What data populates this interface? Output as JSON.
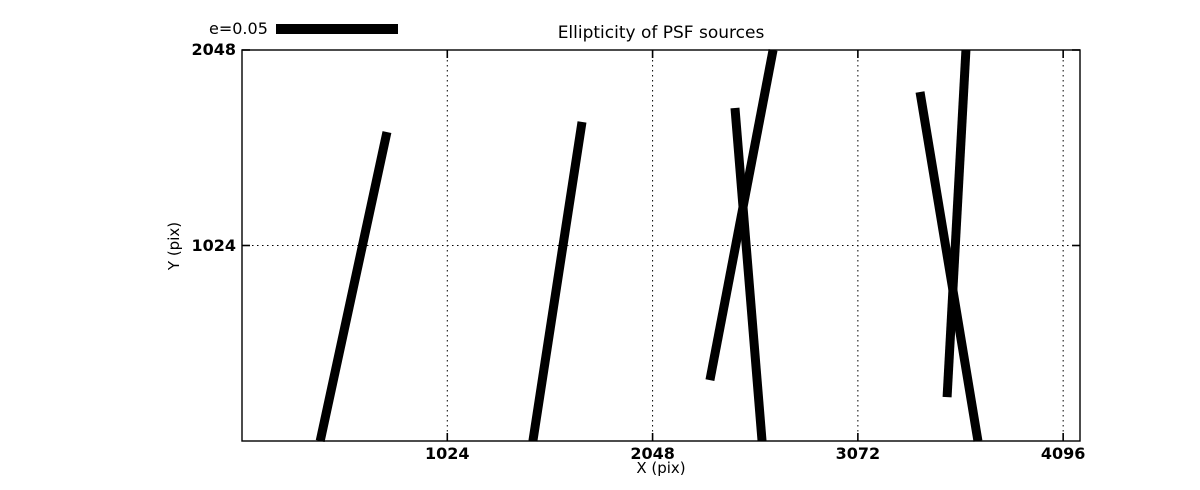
{
  "title": "Ellipticity of PSF sources",
  "legend": {
    "label": "e=0.05"
  },
  "colors": {
    "foreground": "#000000",
    "background": "#ffffff"
  },
  "chart_data": {
    "type": "line",
    "subtype": "ellipticity-whisker-segments",
    "title": "Ellipticity of PSF sources",
    "xlabel": "X (pix)",
    "ylabel": "Y (pix)",
    "xlim": [
      0,
      4180
    ],
    "ylim": [
      0,
      2048
    ],
    "xticks": [
      1024,
      2048,
      3072,
      4096
    ],
    "yticks": [
      1024,
      2048
    ],
    "grid": "dotted",
    "legend": {
      "label": "e=0.05",
      "position": "upper-left-above-axes"
    },
    "segments": [
      {
        "x1": 390,
        "y1": 0,
        "x2": 723,
        "y2": 1618
      },
      {
        "x1": 1451,
        "y1": 0,
        "x2": 1696,
        "y2": 1671
      },
      {
        "x1": 2334,
        "y1": 319,
        "x2": 2649,
        "y2": 2048
      },
      {
        "x1": 2459,
        "y1": 1744,
        "x2": 2594,
        "y2": 0
      },
      {
        "x1": 3382,
        "y1": 1828,
        "x2": 3671,
        "y2": 0
      },
      {
        "x1": 3517,
        "y1": 230,
        "x2": 3611,
        "y2": 2048
      }
    ]
  }
}
